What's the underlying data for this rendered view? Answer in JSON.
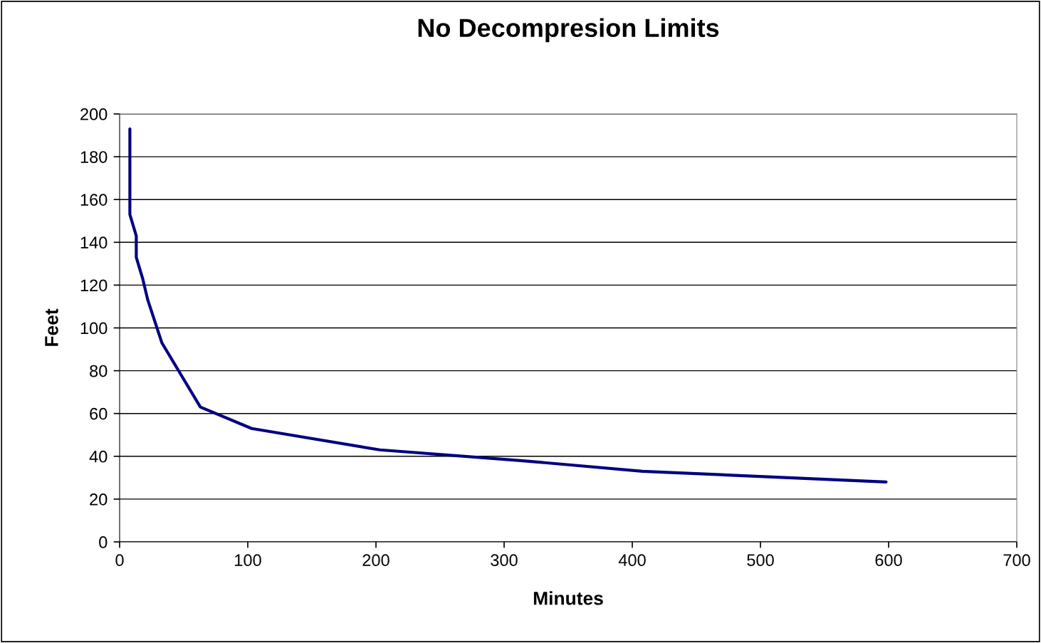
{
  "chart_data": {
    "type": "line",
    "title": "No Decompresion Limits",
    "xlabel": "Minutes",
    "ylabel": "Feet",
    "series": [
      {
        "color": "#000080",
        "x": [
          8,
          8,
          13,
          13,
          18,
          22,
          33,
          63,
          103,
          203,
          313,
          408,
          598
        ],
        "values": [
          193,
          153,
          143,
          133,
          123,
          113,
          93,
          63,
          53,
          43,
          38,
          33,
          28
        ]
      }
    ],
    "xlim": [
      0,
      700
    ],
    "xticks": [
      0,
      100,
      200,
      300,
      400,
      500,
      600,
      700
    ],
    "ylim": [
      0,
      200
    ],
    "yticks": [
      0,
      20,
      40,
      60,
      80,
      100,
      120,
      140,
      160,
      180,
      200
    ],
    "grid": "y",
    "legend": false,
    "marker": "none",
    "line_style": "solid"
  }
}
